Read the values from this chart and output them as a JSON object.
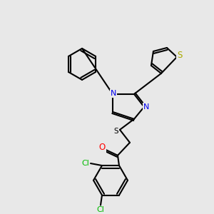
{
  "bg_color": "#e8e8e8",
  "figsize": [
    3.0,
    3.0
  ],
  "dpi": 100,
  "bond_color": "#000000",
  "bond_width": 1.5,
  "atom_colors": {
    "N": "#0000EE",
    "O": "#FF0000",
    "S_thio": "#AAAA00",
    "S_sulfanyl": "#000000",
    "Cl": "#00BB00",
    "C": "#000000"
  },
  "font_size": 7.5,
  "font_size_cl": 7.5
}
